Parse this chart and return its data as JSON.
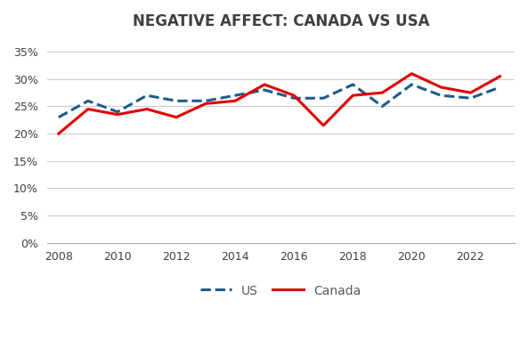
{
  "title": "NEGATIVE AFFECT: CANADA VS USA",
  "years_us": [
    2008,
    2009,
    2010,
    2011,
    2012,
    2013,
    2014,
    2015,
    2016,
    2017,
    2018,
    2019,
    2020,
    2021,
    2022,
    2023
  ],
  "us_values": [
    0.23,
    0.26,
    0.24,
    0.27,
    0.26,
    0.26,
    0.27,
    0.28,
    0.265,
    0.265,
    0.29,
    0.25,
    0.29,
    0.27,
    0.265,
    0.285
  ],
  "years_canada": [
    2008,
    2009,
    2010,
    2011,
    2012,
    2013,
    2014,
    2015,
    2016,
    2017,
    2018,
    2019,
    2020,
    2021,
    2022,
    2023
  ],
  "canada_values": [
    0.2,
    0.245,
    0.235,
    0.245,
    0.23,
    0.255,
    0.26,
    0.29,
    0.27,
    0.215,
    0.27,
    0.275,
    0.31,
    0.285,
    0.275,
    0.305
  ],
  "us_color": "#1F5C8B",
  "canada_color": "#E00000",
  "ylim": [
    0,
    0.375
  ],
  "yticks": [
    0.0,
    0.05,
    0.1,
    0.15,
    0.2,
    0.25,
    0.3,
    0.35
  ],
  "xticks": [
    2008,
    2010,
    2012,
    2014,
    2016,
    2018,
    2020,
    2022
  ],
  "background_color": "#FFFFFF",
  "grid_color": "#CCCCCC",
  "title_fontsize": 12,
  "tick_fontsize": 9,
  "legend_us": "US",
  "legend_canada": "Canada",
  "legend_text_color": "#595959",
  "title_color": "#404040",
  "xlim_left": 2007.6,
  "xlim_right": 2023.5
}
